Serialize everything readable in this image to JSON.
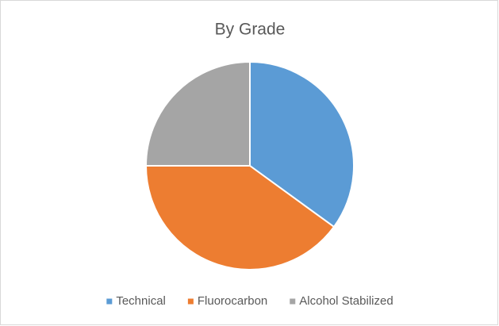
{
  "chart_data": {
    "type": "pie",
    "title": "By Grade",
    "categories": [
      "Technical",
      "Fluorocarbon",
      "Alcohol Stabilized"
    ],
    "values": [
      35,
      40,
      25
    ],
    "colors": [
      "#5b9bd5",
      "#ed7d31",
      "#a5a5a5"
    ],
    "legend": "bottom"
  }
}
